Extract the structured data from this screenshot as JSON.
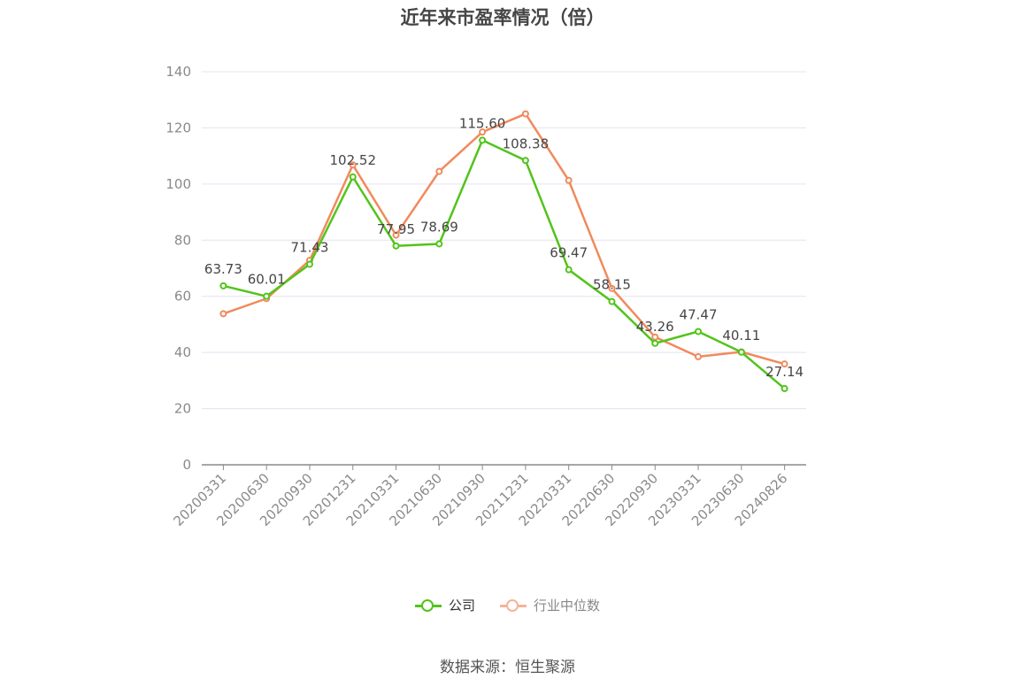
{
  "title": "近年来市盈率情况（倍）",
  "source": "数据来源：恒生聚源",
  "colors": {
    "company": "#52c41a",
    "industry": "#f08a5d",
    "grid": "#e3e3f0",
    "axis": "#8a8a8a"
  },
  "chart_data": {
    "type": "line",
    "categories": [
      "20200331",
      "20200630",
      "20200930",
      "20201231",
      "20210331",
      "20210630",
      "20210930",
      "20211231",
      "20220331",
      "20220630",
      "20220930",
      "20230331",
      "20230630",
      "20240826"
    ],
    "ylim": [
      0,
      140
    ],
    "yticks": [
      0,
      20,
      40,
      60,
      80,
      100,
      120,
      140
    ],
    "grid": true,
    "legend_position": "bottom",
    "series": [
      {
        "name": "公司",
        "color": "#52c41a",
        "show_labels": true,
        "values": [
          63.73,
          60.01,
          71.43,
          102.52,
          77.95,
          78.69,
          115.6,
          108.38,
          69.47,
          58.15,
          43.26,
          47.47,
          40.11,
          27.14
        ]
      },
      {
        "name": "行业中位数",
        "color": "#f08a5d",
        "show_labels": false,
        "values": [
          53.8,
          59.2,
          72.8,
          106.8,
          81.8,
          104.5,
          118.5,
          125.0,
          101.3,
          62.8,
          45.5,
          38.5,
          40.2,
          35.9
        ]
      }
    ]
  }
}
